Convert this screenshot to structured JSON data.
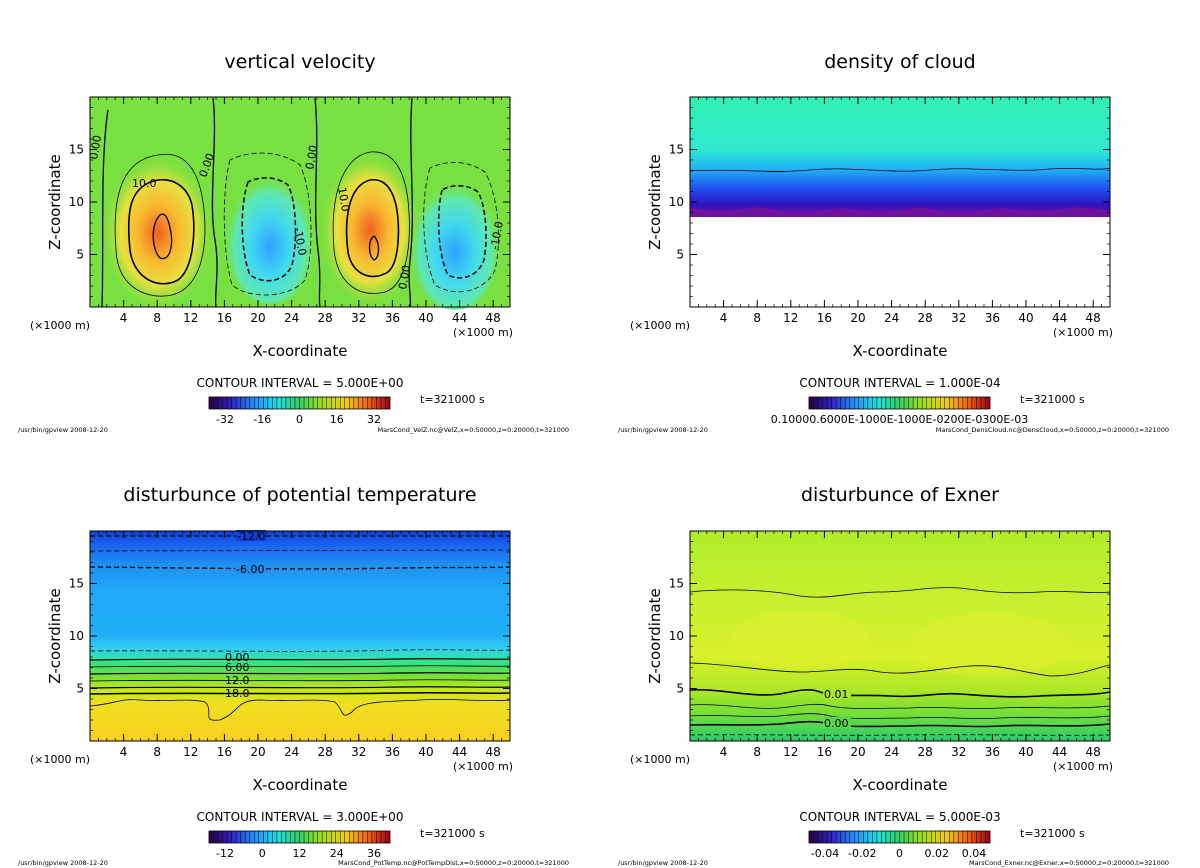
{
  "chart_data": [
    {
      "type": "heatmap",
      "title": "vertical velocity",
      "xlabel": "X-coordinate",
      "ylabel": "Z-coordinate",
      "x_unit": "(×1000 m)",
      "xlim": [
        0,
        50
      ],
      "ylim": [
        0,
        20
      ],
      "x_ticks": [
        4,
        8,
        12,
        16,
        20,
        24,
        28,
        32,
        36,
        40,
        44,
        48
      ],
      "y_ticks": [
        5,
        10,
        15
      ],
      "contour_interval": "CONTOUR INTERVAL = 5.000E+00",
      "time": "t=321000 s",
      "colorbar_ticks": [
        "-32",
        "-16",
        "0",
        "16",
        "32"
      ],
      "contour_labels": [
        "0.00",
        "10.0",
        "0.00",
        "-10.0",
        "0.00",
        "10.0",
        "0.00",
        "-10.0"
      ],
      "footer_left": "/usr/bin/gpview  2008-12-20",
      "footer_right": "MarsCond_VelZ.nc@VelZ,x=0:50000,z=0:20000,t=321000"
    },
    {
      "type": "heatmap",
      "title": "density of cloud",
      "xlabel": "X-coordinate",
      "ylabel": "Z-coordinate",
      "x_unit": "(×1000 m)",
      "xlim": [
        0,
        50
      ],
      "ylim": [
        0,
        20
      ],
      "x_ticks": [
        4,
        8,
        12,
        16,
        20,
        24,
        28,
        32,
        36,
        40,
        44,
        48
      ],
      "y_ticks": [
        5,
        10,
        15
      ],
      "contour_interval": "CONTOUR INTERVAL = 1.000E-04",
      "time": "t=321000 s",
      "colorbar_ticks": [
        "0.10000.6000E-1000E-1000E-0200E-0300E-03"
      ],
      "contour_labels": [],
      "footer_left": "/usr/bin/gpview  2008-12-20",
      "footer_right": "MarsCond_DensCloud.nc@DensCloud,x=0:50000,z=0:20000,t=321000"
    },
    {
      "type": "heatmap",
      "title": "disturbunce of potential temperature",
      "xlabel": "X-coordinate",
      "ylabel": "Z-coordinate",
      "x_unit": "(×1000 m)",
      "xlim": [
        0,
        50
      ],
      "ylim": [
        0,
        20
      ],
      "x_ticks": [
        4,
        8,
        12,
        16,
        20,
        24,
        28,
        32,
        36,
        40,
        44,
        48
      ],
      "y_ticks": [
        5,
        10,
        15
      ],
      "contour_interval": "CONTOUR INTERVAL = 3.000E+00",
      "time": "t=321000 s",
      "colorbar_ticks": [
        "-12",
        "0",
        "12",
        "24",
        "36"
      ],
      "contour_labels": [
        "-12.0",
        "-6.00",
        "0.00",
        "6.00",
        "12.0",
        "18.0"
      ],
      "footer_left": "/usr/bin/gpview  2008-12-20",
      "footer_right": "MarsCond_PotTemp.nc@PotTempDist,x=0:50000,z=0:20000,t=321000"
    },
    {
      "type": "heatmap",
      "title": "disturbunce of Exner",
      "xlabel": "X-coordinate",
      "ylabel": "Z-coordinate",
      "x_unit": "(×1000 m)",
      "xlim": [
        0,
        50
      ],
      "ylim": [
        0,
        20
      ],
      "x_ticks": [
        4,
        8,
        12,
        16,
        20,
        24,
        28,
        32,
        36,
        40,
        44,
        48
      ],
      "y_ticks": [
        5,
        10,
        15
      ],
      "contour_interval": "CONTOUR INTERVAL = 5.000E-03",
      "time": "t=321000 s",
      "colorbar_ticks": [
        "-0.04",
        "-0.02",
        "0",
        "0.02",
        "0.04"
      ],
      "contour_labels": [
        "0.01",
        "0.00"
      ],
      "footer_left": "/usr/bin/gpview  2008-12-20",
      "footer_right": "MarsCond_Exner.nc@Exner,x=0:50000,z=0:20000,t=321000"
    }
  ]
}
